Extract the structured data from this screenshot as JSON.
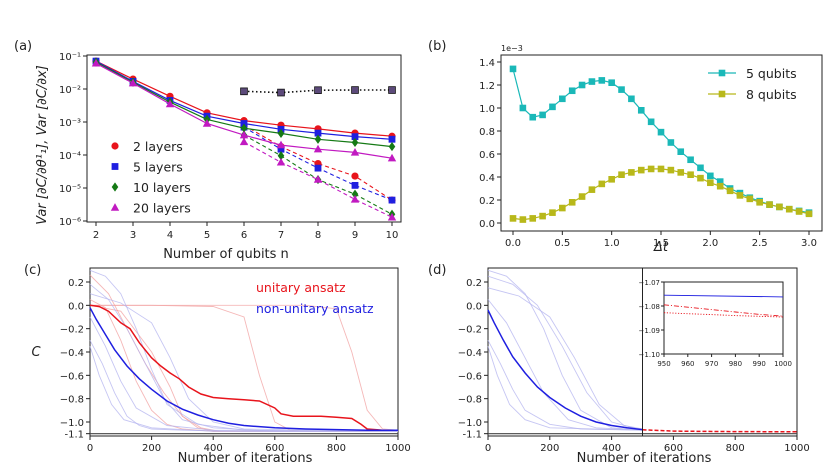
{
  "chart_data": [
    {
      "panel": "(a)",
      "type": "line",
      "yscale": "log",
      "xlabel": "Number of qubits n",
      "ylabel": "Var [∂C/∂θ¹₁], Var [∂C/∂x]",
      "xlim": [
        2,
        10
      ],
      "ylim_log10": [
        -6,
        -1
      ],
      "x_ticks": [
        2,
        3,
        4,
        5,
        6,
        7,
        8,
        9,
        10
      ],
      "y_ticks": [
        "10⁻⁶",
        "10⁻⁵",
        "10⁻⁴",
        "10⁻³",
        "10⁻²",
        "10⁻¹"
      ],
      "legend": "middle-left",
      "series": [
        {
          "name": "2 layers",
          "color": "#e8141c",
          "marker": "circle",
          "x": [
            2,
            3,
            4,
            5,
            6,
            7,
            8,
            9,
            10
          ],
          "solid": [
            0.07,
            0.02,
            0.006,
            0.0019,
            0.0011,
            0.0008,
            0.00062,
            0.00046,
            0.00037
          ],
          "dashed_x": [
            6,
            7,
            8,
            9,
            10
          ],
          "dashed": [
            0.0008,
            0.00018,
            5.5e-05,
            2.3e-05,
            4.3e-06
          ]
        },
        {
          "name": "5 layers",
          "color": "#1f1fe0",
          "marker": "square",
          "x": [
            2,
            3,
            4,
            5,
            6,
            7,
            8,
            9,
            10
          ],
          "solid": [
            0.07,
            0.017,
            0.0045,
            0.0015,
            0.0009,
            0.0006,
            0.00046,
            0.00036,
            0.0003
          ],
          "dashed_x": [
            6,
            7,
            8,
            9,
            10
          ],
          "dashed": [
            0.0007,
            0.00015,
            4e-05,
            1.2e-05,
            4.3e-06
          ]
        },
        {
          "name": "10 layers",
          "color": "#157a15",
          "marker": "diamond",
          "x": [
            2,
            3,
            4,
            5,
            6,
            7,
            8,
            9,
            10
          ],
          "solid": [
            0.065,
            0.016,
            0.004,
            0.0012,
            0.00065,
            0.00045,
            0.0003,
            0.00024,
            0.00018
          ],
          "dashed_x": [
            6,
            7,
            8,
            9,
            10
          ],
          "dashed": [
            0.0004,
            9.5e-05,
            1.8e-05,
            6.5e-06,
            1.6e-06
          ]
        },
        {
          "name": "20 layers",
          "color": "#c11ac1",
          "marker": "triangle",
          "x": [
            2,
            3,
            4,
            5,
            6,
            7,
            8,
            9,
            10
          ],
          "solid": [
            0.06,
            0.015,
            0.0035,
            0.0009,
            0.0004,
            0.0002,
            0.00015,
            0.00012,
            8e-05
          ],
          "dashed_x": [
            6,
            7,
            8,
            9,
            10
          ],
          "dashed": [
            0.00025,
            6e-05,
            1.8e-05,
            4.5e-06,
            1.3e-06
          ]
        }
      ],
      "dotted_series": {
        "x": [
          6,
          7,
          8,
          9,
          10
        ],
        "values": [
          0.0085,
          0.0078,
          0.0092,
          0.0093,
          0.0093
        ],
        "color": "#111111"
      }
    },
    {
      "panel": "(b)",
      "type": "line",
      "xlabel": "Δt",
      "ylabel": "",
      "scale_label": "1e−3",
      "xlim": [
        0,
        3
      ],
      "ylim": [
        0,
        1.4
      ],
      "x_ticks": [
        "0.0",
        "0.5",
        "1.0",
        "1.5",
        "2.0",
        "2.5",
        "3.0"
      ],
      "y_ticks": [
        "0.0",
        "0.2",
        "0.4",
        "0.6",
        "0.8",
        "1.0",
        "1.2",
        "1.4"
      ],
      "legend": "top-right",
      "series": [
        {
          "name": "5 qubits",
          "color": "#1ab8b8",
          "x": [
            0,
            0.1,
            0.2,
            0.3,
            0.4,
            0.5,
            0.6,
            0.7,
            0.8,
            0.9,
            1.0,
            1.1,
            1.2,
            1.3,
            1.4,
            1.5,
            1.6,
            1.7,
            1.8,
            1.9,
            2.0,
            2.1,
            2.2,
            2.3,
            2.4,
            2.5,
            2.6,
            2.7,
            2.8,
            2.9,
            3.0
          ],
          "values": [
            1.34,
            1.0,
            0.92,
            0.94,
            1.01,
            1.08,
            1.15,
            1.2,
            1.23,
            1.24,
            1.22,
            1.16,
            1.08,
            0.98,
            0.88,
            0.79,
            0.7,
            0.62,
            0.55,
            0.48,
            0.41,
            0.36,
            0.3,
            0.26,
            0.22,
            0.19,
            0.16,
            0.14,
            0.12,
            0.105,
            0.09
          ]
        },
        {
          "name": "8 qubits",
          "color": "#b8b81a",
          "x": [
            0,
            0.1,
            0.2,
            0.3,
            0.4,
            0.5,
            0.6,
            0.7,
            0.8,
            0.9,
            1.0,
            1.1,
            1.2,
            1.3,
            1.4,
            1.5,
            1.6,
            1.7,
            1.8,
            1.9,
            2.0,
            2.1,
            2.2,
            2.3,
            2.4,
            2.5,
            2.6,
            2.7,
            2.8,
            2.9,
            3.0
          ],
          "values": [
            0.04,
            0.03,
            0.04,
            0.06,
            0.09,
            0.13,
            0.18,
            0.23,
            0.29,
            0.34,
            0.38,
            0.42,
            0.44,
            0.46,
            0.47,
            0.47,
            0.46,
            0.44,
            0.42,
            0.39,
            0.35,
            0.32,
            0.28,
            0.24,
            0.21,
            0.18,
            0.16,
            0.14,
            0.12,
            0.1,
            0.08
          ]
        }
      ]
    },
    {
      "panel": "(c)",
      "type": "line",
      "xlabel": "Number of iterations",
      "ylabel": "C",
      "xlim": [
        0,
        1000
      ],
      "ylim": [
        -1.12,
        0.32
      ],
      "x_ticks": [
        "0",
        "200",
        "400",
        "600",
        "800",
        "1000"
      ],
      "y_ticks": [
        "0.2",
        "0.0",
        "−0.2",
        "−0.4",
        "−0.6",
        "−0.8",
        "−1.0",
        "-1.1"
      ],
      "reference_line": -1.1,
      "annotations": [
        {
          "text": "unitary ansatz",
          "color": "#e8141c"
        },
        {
          "text": "non-unitary ansatz",
          "color": "#1f1fe0"
        }
      ],
      "series": [
        {
          "name": "unitary mean",
          "color": "#e8141c",
          "x": [
            0,
            30,
            60,
            100,
            130,
            160,
            200,
            230,
            260,
            290,
            320,
            360,
            400,
            450,
            500,
            550,
            600,
            620,
            660,
            700,
            750,
            800,
            850,
            880,
            900,
            950,
            1000
          ],
          "values": [
            0,
            -0.01,
            -0.05,
            -0.15,
            -0.2,
            -0.32,
            -0.45,
            -0.52,
            -0.58,
            -0.63,
            -0.7,
            -0.76,
            -0.79,
            -0.8,
            -0.81,
            -0.82,
            -0.88,
            -0.93,
            -0.95,
            -0.95,
            -0.95,
            -0.96,
            -0.97,
            -1.02,
            -1.06,
            -1.07,
            -1.07
          ]
        },
        {
          "name": "non-unitary mean",
          "color": "#1f1fe0",
          "x": [
            0,
            20,
            50,
            80,
            120,
            160,
            200,
            250,
            300,
            350,
            400,
            450,
            500,
            600,
            700,
            800,
            900,
            1000
          ],
          "values": [
            -0.02,
            -0.12,
            -0.25,
            -0.38,
            -0.52,
            -0.63,
            -0.72,
            -0.82,
            -0.89,
            -0.94,
            -0.98,
            -1.01,
            -1.03,
            -1.05,
            -1.06,
            -1.065,
            -1.07,
            -1.07
          ]
        }
      ],
      "faint_series": [
        {
          "color": "#f2a0a0",
          "x": [
            0,
            60,
            120,
            180,
            240,
            300,
            360,
            420
          ],
          "values": [
            0.26,
            0.1,
            -0.2,
            -0.5,
            -0.75,
            -0.95,
            -1.05,
            -1.08
          ]
        },
        {
          "color": "#f2a0a0",
          "x": [
            0,
            50,
            100,
            150,
            200,
            250,
            300,
            400,
            1000
          ],
          "values": [
            0.05,
            -0.02,
            -0.3,
            -0.65,
            -0.9,
            -1.02,
            -1.06,
            -1.08,
            -1.08
          ]
        },
        {
          "color": "#f2a0a0",
          "x": [
            0,
            200,
            400,
            500,
            550,
            600,
            650,
            700,
            1000
          ],
          "values": [
            0,
            0,
            -0.01,
            -0.1,
            -0.6,
            -1.0,
            -1.07,
            -1.08,
            -1.08
          ]
        },
        {
          "color": "#f2a0a0",
          "x": [
            0,
            400,
            700,
            800,
            850,
            900,
            950,
            1000
          ],
          "values": [
            0,
            0,
            0,
            -0.03,
            -0.4,
            -0.9,
            -1.06,
            -1.07
          ]
        },
        {
          "color": "#f2a0a0",
          "x": [
            0,
            100,
            200,
            260,
            300,
            350,
            400,
            1000
          ],
          "values": [
            0,
            -0.05,
            -0.4,
            -0.7,
            -0.95,
            -1.05,
            -1.08,
            -1.08
          ]
        },
        {
          "color": "#b3b3ef",
          "x": [
            0,
            50,
            100,
            150,
            200,
            250,
            350,
            500,
            1000
          ],
          "values": [
            0.3,
            0.25,
            0.1,
            -0.2,
            -0.55,
            -0.85,
            -1.02,
            -1.07,
            -1.08
          ]
        },
        {
          "color": "#b3b3ef",
          "x": [
            0,
            40,
            80,
            120,
            160,
            200,
            300,
            500,
            1000
          ],
          "values": [
            -0.3,
            -0.5,
            -0.75,
            -0.95,
            -1.03,
            -1.06,
            -1.07,
            -1.08,
            -1.08
          ]
        },
        {
          "color": "#b3b3ef",
          "x": [
            0,
            60,
            120,
            180,
            240,
            300,
            400,
            600,
            1000
          ],
          "values": [
            0.18,
            0.05,
            -0.2,
            -0.5,
            -0.8,
            -0.98,
            -1.05,
            -1.08,
            -1.08
          ]
        },
        {
          "color": "#b3b3ef",
          "x": [
            0,
            50,
            100,
            150,
            250,
            400,
            1000
          ],
          "values": [
            -0.1,
            -0.35,
            -0.65,
            -0.88,
            -1.03,
            -1.07,
            -1.08
          ]
        },
        {
          "color": "#b3b3ef",
          "x": [
            0,
            100,
            200,
            260,
            320,
            400,
            500,
            1000
          ],
          "values": [
            0.1,
            0.02,
            -0.15,
            -0.45,
            -0.8,
            -1.0,
            -1.06,
            -1.08
          ]
        },
        {
          "color": "#b3b3ef",
          "x": [
            0,
            30,
            70,
            110,
            200,
            400,
            1000
          ],
          "values": [
            -0.35,
            -0.6,
            -0.85,
            -0.98,
            -1.05,
            -1.08,
            -1.08
          ]
        }
      ]
    },
    {
      "panel": "(d)",
      "type": "line",
      "xlabel": "Number of iterations",
      "ylabel": "",
      "xlim": [
        0,
        1000
      ],
      "ylim": [
        -1.12,
        0.32
      ],
      "x_ticks": [
        "0",
        "200",
        "400",
        "600",
        "800",
        "1000"
      ],
      "y_ticks": [
        "0.2",
        "0.0",
        "−0.2",
        "−0.4",
        "−0.6",
        "−0.8",
        "−1.0",
        "-1.1"
      ],
      "reference_line": -1.1,
      "switch_iteration": 500,
      "series": [
        {
          "name": "non-unitary mean",
          "color": "#1f1fe0",
          "x": [
            0,
            20,
            50,
            80,
            120,
            160,
            200,
            250,
            300,
            350,
            400,
            450,
            500
          ],
          "values": [
            -0.04,
            -0.15,
            -0.3,
            -0.44,
            -0.58,
            -0.7,
            -0.79,
            -0.88,
            -0.95,
            -1.0,
            -1.03,
            -1.05,
            -1.065
          ]
        },
        {
          "name": "unitary continuation",
          "color": "#e8141c",
          "dashed": true,
          "x": [
            500,
            600,
            700,
            800,
            900,
            1000
          ],
          "values": [
            -1.067,
            -1.078,
            -1.081,
            -1.082,
            -1.083,
            -1.084
          ]
        }
      ],
      "faint_series": [
        {
          "color": "#b3b3ef",
          "x": [
            0,
            60,
            120,
            180,
            240,
            300,
            400,
            500
          ],
          "values": [
            0.3,
            0.25,
            0.1,
            -0.2,
            -0.6,
            -0.9,
            -1.05,
            -1.07
          ]
        },
        {
          "color": "#b3b3ef",
          "x": [
            0,
            80,
            160,
            240,
            320,
            400,
            500
          ],
          "values": [
            0.25,
            0.18,
            0.0,
            -0.35,
            -0.75,
            -1.0,
            -1.07
          ]
        },
        {
          "color": "#b3b3ef",
          "x": [
            0,
            40,
            80,
            120,
            200,
            300,
            500
          ],
          "values": [
            -0.3,
            -0.5,
            -0.72,
            -0.9,
            -1.02,
            -1.06,
            -1.07
          ]
        },
        {
          "color": "#b3b3ef",
          "x": [
            0,
            60,
            120,
            180,
            260,
            350,
            500
          ],
          "values": [
            0.05,
            -0.15,
            -0.45,
            -0.75,
            -0.98,
            -1.05,
            -1.07
          ]
        },
        {
          "color": "#b3b3ef",
          "x": [
            0,
            100,
            200,
            280,
            360,
            440,
            500
          ],
          "values": [
            0.15,
            0.08,
            -0.1,
            -0.45,
            -0.85,
            -1.03,
            -1.06
          ]
        },
        {
          "color": "#b3b3ef",
          "x": [
            0,
            30,
            70,
            120,
            200,
            500
          ],
          "values": [
            -0.35,
            -0.6,
            -0.85,
            -0.98,
            -1.05,
            -1.07
          ]
        }
      ],
      "inset": {
        "xlim": [
          950,
          1000
        ],
        "ylim": [
          -1.1,
          -1.07
        ],
        "x_ticks": [
          "950",
          "960",
          "970",
          "980",
          "990",
          "1000"
        ],
        "y_ticks": [
          "−1.07",
          "−1.08",
          "−1.09",
          "−1.10"
        ],
        "series": [
          {
            "color": "#1f1fe0",
            "style": "solid",
            "x": [
              950,
              1000
            ],
            "values": [
              -1.0755,
              -1.0762
            ]
          },
          {
            "color": "#e8141c",
            "style": "dashdot",
            "x": [
              950,
              960,
              970,
              980,
              990,
              1000
            ],
            "values": [
              -1.0795,
              -1.0805,
              -1.0815,
              -1.0825,
              -1.0835,
              -1.0842
            ]
          },
          {
            "color": "#e8141c",
            "style": "dotted",
            "x": [
              950,
              960,
              970,
              980,
              990,
              1000
            ],
            "values": [
              -1.0828,
              -1.0832,
              -1.0836,
              -1.084,
              -1.0843,
              -1.0846
            ]
          }
        ]
      }
    }
  ]
}
